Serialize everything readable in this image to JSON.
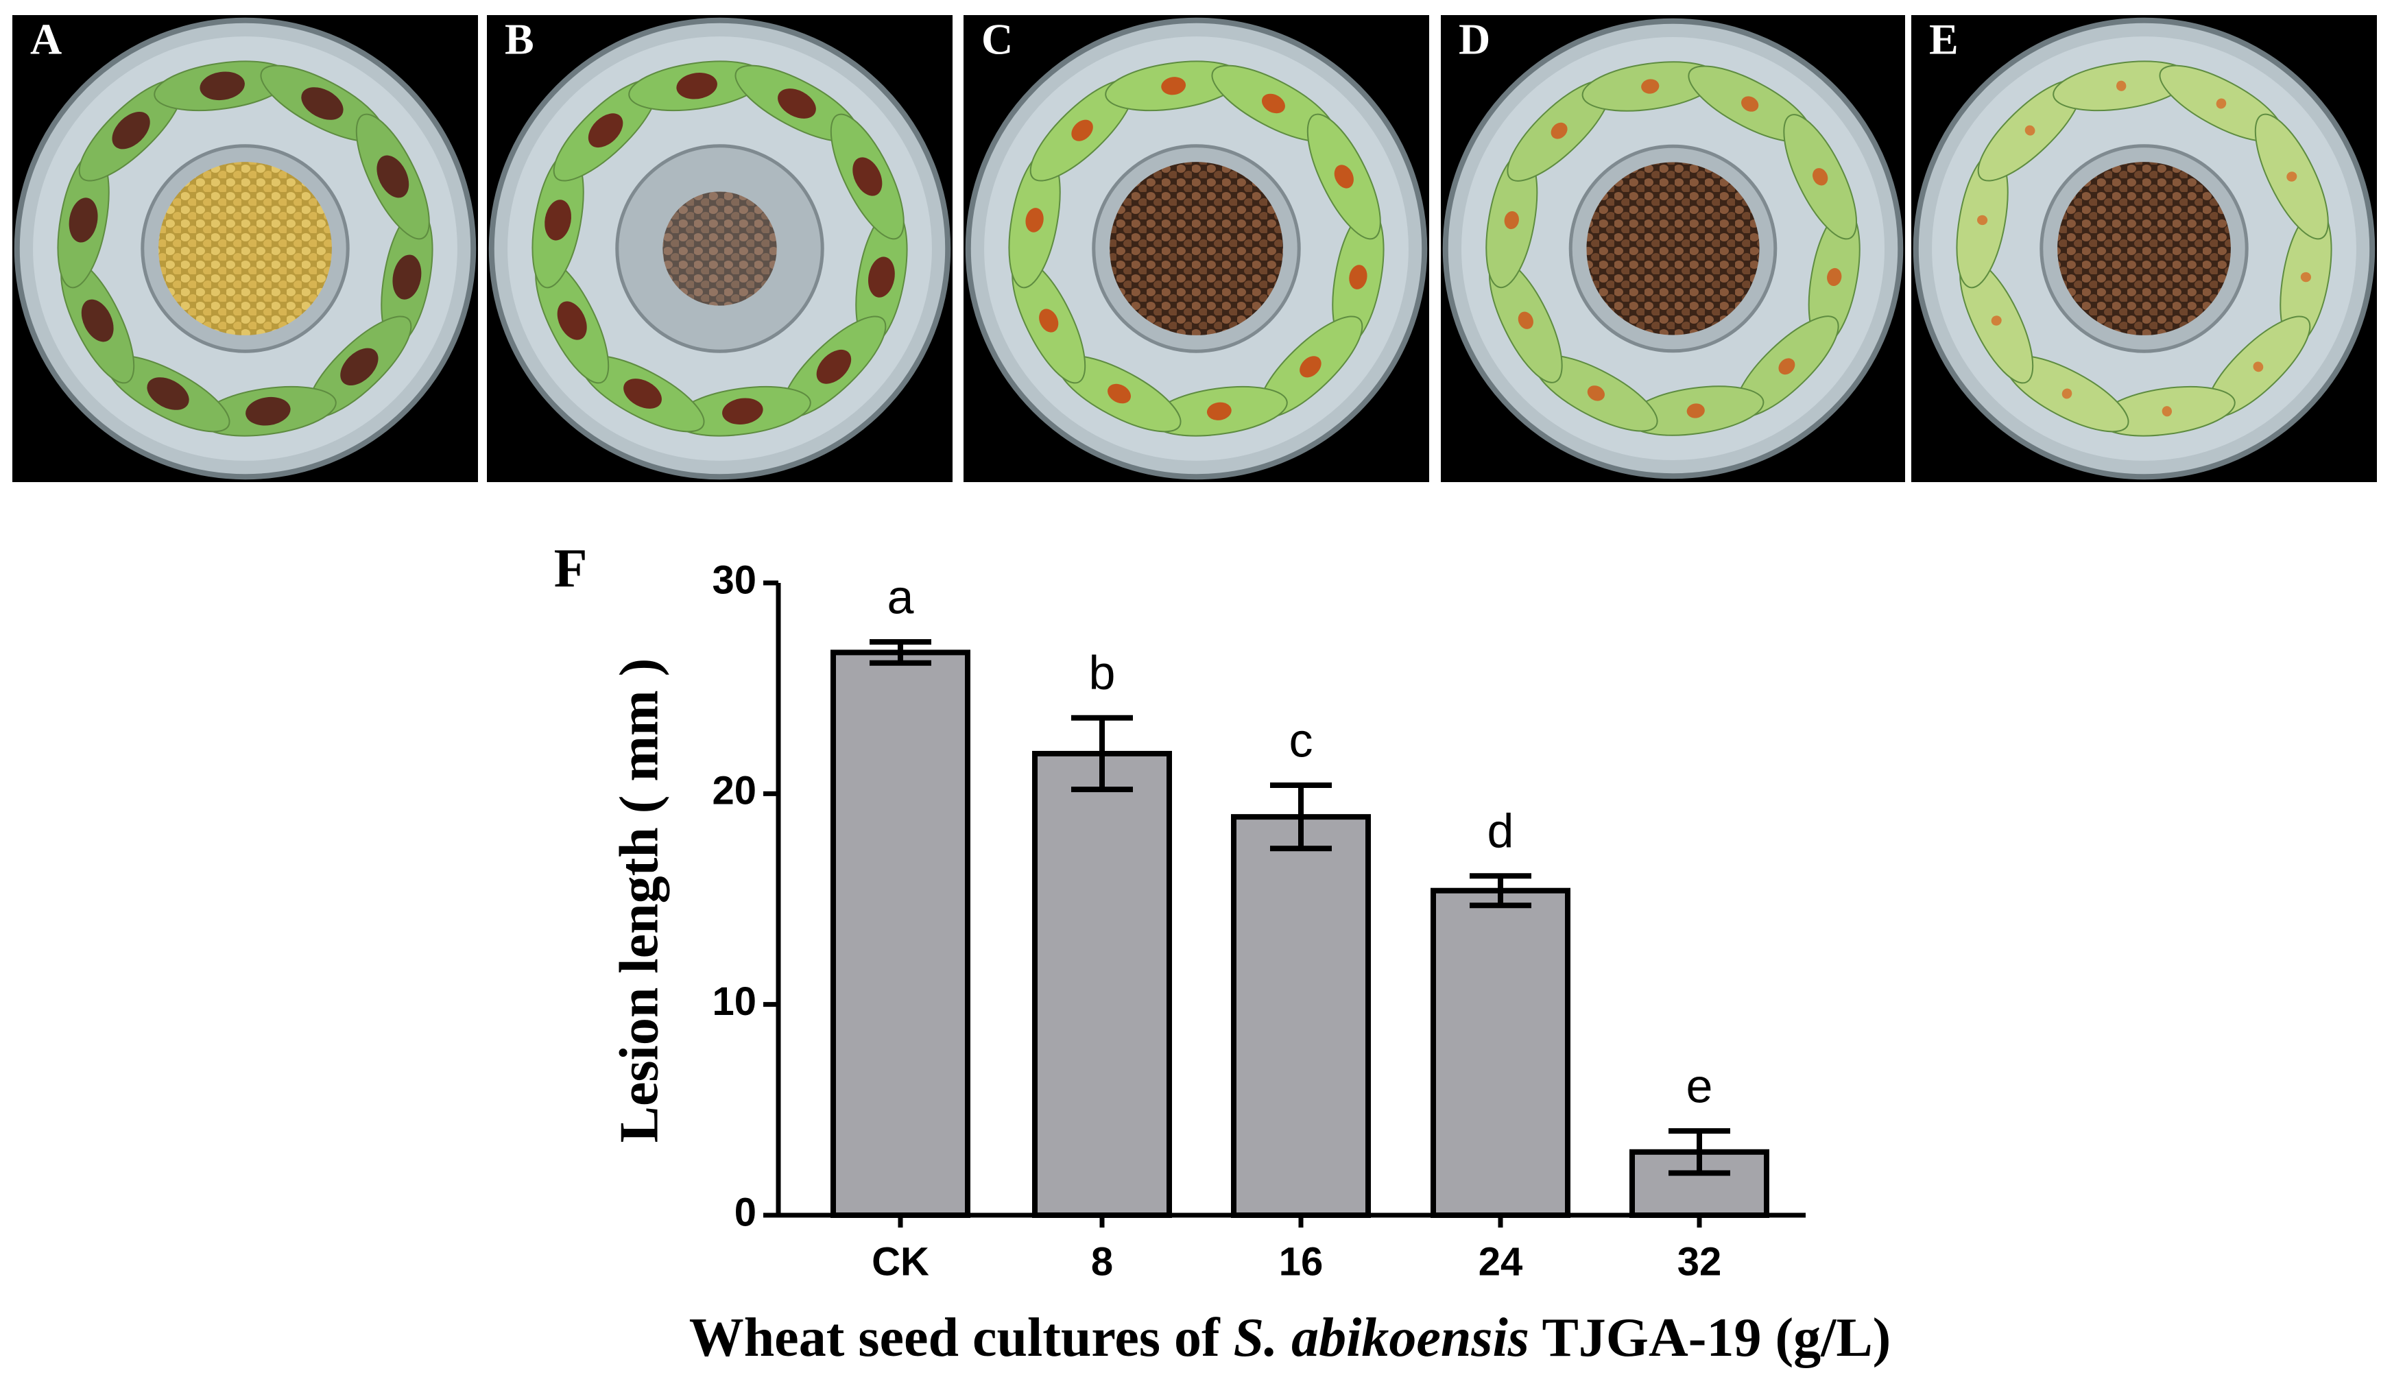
{
  "figure": {
    "panel_labels": [
      "A",
      "B",
      "C",
      "D",
      "E"
    ],
    "chart_label": "F"
  },
  "chart_data": {
    "type": "bar",
    "categories": [
      "CK",
      "8",
      "16",
      "24",
      "32"
    ],
    "values": [
      26.7,
      21.9,
      18.9,
      15.4,
      3.0
    ],
    "errors": [
      0.5,
      1.7,
      1.5,
      0.7,
      1.0
    ],
    "annotations": [
      "a",
      "b",
      "c",
      "d",
      "e"
    ],
    "color": "#a5a5aa",
    "ylim": [
      0,
      30
    ],
    "yticks": [
      0,
      10,
      20,
      30
    ],
    "y_label": "Lesion  length ( mm )",
    "x_label": [
      "Wheat seed cultures of ",
      "S. abikoensis",
      " TJGA-19 (g/L)"
    ]
  }
}
